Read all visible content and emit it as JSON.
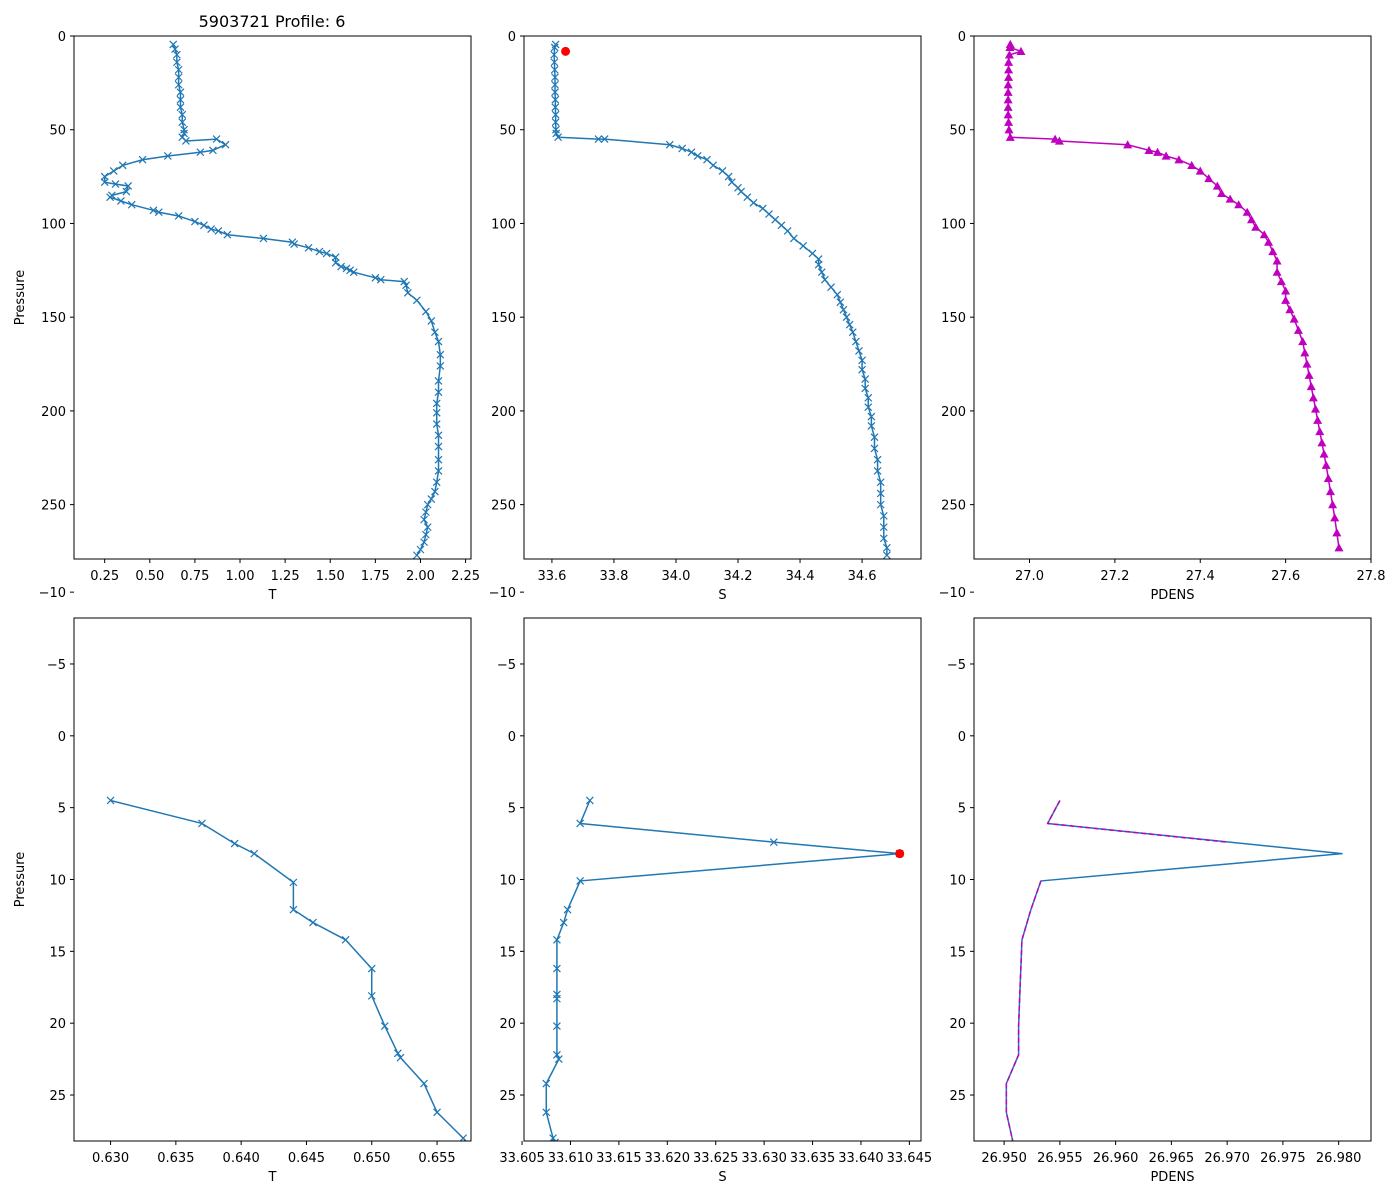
{
  "chart_data": [
    {
      "type": "line",
      "id": "tl",
      "title": "5903721 Profile: 6",
      "xlabel": "T",
      "ylabel": "Pressure",
      "xlim": [
        0.08,
        2.28
      ],
      "ylim": [
        279,
        0
      ],
      "xticks": [
        0.25,
        0.5,
        0.75,
        1.0,
        1.25,
        1.5,
        1.75,
        2.0,
        2.25
      ],
      "xtick_labels": [
        "0.25",
        "0.50",
        "0.75",
        "1.00",
        "1.25",
        "1.50",
        "1.75",
        "2.00",
        "2.25"
      ],
      "yticks": [
        0,
        50,
        100,
        150,
        200,
        250
      ],
      "ytick_labels": [
        "0",
        "50",
        "100",
        "150",
        "200",
        "250"
      ],
      "series": [
        {
          "name": "T",
          "color": "#1f77b4",
          "marker": "x",
          "line": "solid",
          "x": [
            0.63,
            0.64,
            0.65,
            0.65,
            0.66,
            0.66,
            0.66,
            0.67,
            0.67,
            0.67,
            0.68,
            0.68,
            0.69,
            0.69,
            0.68,
            0.7,
            0.87,
            0.92,
            0.85,
            0.78,
            0.6,
            0.46,
            0.35,
            0.3,
            0.25,
            0.25,
            0.31,
            0.38,
            0.37,
            0.29,
            0.28,
            0.34,
            0.4,
            0.52,
            0.55,
            0.66,
            0.75,
            0.8,
            0.84,
            0.88,
            0.93,
            1.13,
            1.29,
            1.3,
            1.38,
            1.44,
            1.48,
            1.53,
            1.53,
            1.56,
            1.59,
            1.61,
            1.63,
            1.75,
            1.78,
            1.91,
            1.92,
            1.93,
            1.98,
            2.03,
            2.06,
            2.08,
            2.1,
            2.11,
            2.11,
            2.1,
            2.1,
            2.09,
            2.09,
            2.09,
            2.1,
            2.1,
            2.1,
            2.1,
            2.09,
            2.08,
            2.06,
            2.04,
            2.03,
            2.02,
            2.04,
            2.03,
            2.02,
            2.0,
            1.98
          ],
          "y": [
            4.5,
            7,
            10,
            14,
            18,
            22,
            26,
            30,
            34,
            38,
            42,
            46,
            50,
            52,
            54,
            56,
            55,
            58,
            61,
            62,
            64,
            66,
            69,
            72,
            75,
            78,
            79,
            80,
            83,
            85,
            86,
            88,
            90,
            93,
            94,
            96,
            99,
            101,
            103,
            104,
            106,
            108,
            110,
            111,
            113,
            115,
            116,
            118,
            121,
            123,
            124,
            125,
            126,
            129,
            130,
            131,
            133,
            137,
            141,
            147,
            152,
            158,
            163,
            170,
            176,
            184,
            190,
            196,
            201,
            207,
            213,
            219,
            226,
            232,
            238,
            243,
            247,
            250,
            254,
            258,
            262,
            266,
            270,
            274,
            277
          ]
        }
      ]
    },
    {
      "type": "line",
      "id": "tm",
      "title": "",
      "xlabel": "S",
      "ylabel": "",
      "xlim": [
        33.51,
        34.79
      ],
      "ylim": [
        279,
        0
      ],
      "xticks": [
        33.6,
        33.8,
        34.0,
        34.2,
        34.4,
        34.6
      ],
      "xtick_labels": [
        "33.6",
        "33.8",
        "34.0",
        "34.2",
        "34.4",
        "34.6"
      ],
      "yticks": [
        0,
        50,
        100,
        150,
        200,
        250
      ],
      "ytick_labels": [
        "0",
        "50",
        "100",
        "150",
        "200",
        "250"
      ],
      "series": [
        {
          "name": "S",
          "color": "#1f77b4",
          "marker": "x",
          "line": "solid",
          "x": [
            33.612,
            33.609,
            33.607,
            33.608,
            33.609,
            33.61,
            33.61,
            33.61,
            33.611,
            33.611,
            33.612,
            33.612,
            33.613,
            33.614,
            33.62,
            33.75,
            33.77,
            33.98,
            34.02,
            34.05,
            34.07,
            34.1,
            34.12,
            34.15,
            34.17,
            34.18,
            34.2,
            34.21,
            34.23,
            34.25,
            34.28,
            34.3,
            34.32,
            34.34,
            34.36,
            34.38,
            34.41,
            34.44,
            34.46,
            34.46,
            34.47,
            34.48,
            34.5,
            34.52,
            34.53,
            34.54,
            34.55,
            34.56,
            34.57,
            34.58,
            34.59,
            34.6,
            34.6,
            34.61,
            34.61,
            34.62,
            34.62,
            34.63,
            34.63,
            34.64,
            34.64,
            34.65,
            34.65,
            34.66,
            34.66,
            34.66,
            34.67,
            34.67,
            34.67,
            34.68,
            34.68
          ],
          "y": [
            4.5,
            6.1,
            10,
            14,
            18,
            22,
            26,
            30,
            34,
            38,
            42,
            46,
            50,
            52,
            54,
            55,
            55,
            58,
            60,
            62,
            64,
            66,
            69,
            72,
            75,
            78,
            81,
            83,
            86,
            89,
            92,
            95,
            98,
            101,
            104,
            108,
            112,
            116,
            119,
            122,
            126,
            130,
            134,
            138,
            142,
            146,
            150,
            154,
            158,
            163,
            168,
            173,
            178,
            183,
            188,
            193,
            198,
            203,
            208,
            214,
            220,
            226,
            232,
            238,
            244,
            250,
            256,
            262,
            268,
            273,
            277
          ]
        },
        {
          "name": "flagged",
          "color": "#ff0000",
          "marker": "dot",
          "line": "none",
          "x": [
            33.644
          ],
          "y": [
            8.2
          ]
        }
      ]
    },
    {
      "type": "line",
      "id": "tr",
      "title": "",
      "xlabel": "PDENS",
      "ylabel": "",
      "xlim": [
        26.87,
        27.8
      ],
      "ylim": [
        279,
        0
      ],
      "xticks": [
        27.0,
        27.2,
        27.4,
        27.6,
        27.8
      ],
      "xtick_labels": [
        "27.0",
        "27.2",
        "27.4",
        "27.6",
        "27.8"
      ],
      "yticks": [
        0,
        50,
        100,
        150,
        200,
        250
      ],
      "ytick_labels": [
        "0",
        "50",
        "100",
        "150",
        "200",
        "250"
      ],
      "series": [
        {
          "name": "PDENS",
          "color": "#bf00bf",
          "marker": "triangle",
          "line": "solid",
          "x": [
            26.955,
            26.954,
            26.98,
            26.953,
            26.951,
            26.951,
            26.951,
            26.95,
            26.95,
            26.95,
            26.95,
            26.95,
            26.951,
            26.952,
            26.955,
            27.06,
            27.07,
            27.23,
            27.28,
            27.3,
            27.32,
            27.35,
            27.38,
            27.4,
            27.42,
            27.44,
            27.45,
            27.47,
            27.49,
            27.51,
            27.52,
            27.53,
            27.55,
            27.56,
            27.57,
            27.58,
            27.58,
            27.59,
            27.6,
            27.6,
            27.61,
            27.62,
            27.63,
            27.64,
            27.645,
            27.65,
            27.655,
            27.66,
            27.665,
            27.67,
            27.675,
            27.68,
            27.685,
            27.69,
            27.695,
            27.7,
            27.705,
            27.71,
            27.715,
            27.72,
            27.725
          ],
          "y": [
            4.5,
            6.1,
            8.2,
            10.1,
            14,
            18,
            22,
            26,
            30,
            34,
            38,
            42,
            46,
            50,
            54,
            55,
            56,
            58,
            61,
            62,
            64,
            66,
            69,
            72,
            76,
            80,
            84,
            87,
            90,
            94,
            98,
            102,
            106,
            110,
            115,
            120,
            126,
            131,
            136,
            141,
            146,
            151,
            157,
            163,
            169,
            175,
            181,
            187,
            193,
            199,
            205,
            211,
            217,
            223,
            229,
            236,
            243,
            250,
            257,
            265,
            273
          ]
        }
      ]
    },
    {
      "type": "line",
      "id": "bl",
      "title": "",
      "xlabel": "T",
      "ylabel": "Pressure",
      "xlim": [
        0.6272,
        0.6576
      ],
      "ylim": [
        28.2,
        -8.2
      ],
      "xticks": [
        0.63,
        0.635,
        0.64,
        0.645,
        0.65,
        0.655
      ],
      "xtick_labels": [
        "0.630",
        "0.635",
        "0.640",
        "0.645",
        "0.650",
        "0.655"
      ],
      "yticks": [
        -10,
        -5,
        0,
        5,
        10,
        15,
        20,
        25
      ],
      "ytick_labels": [
        "−10",
        "−5",
        "0",
        "5",
        "10",
        "15",
        "20",
        "25"
      ],
      "series": [
        {
          "name": "T",
          "color": "#1f77b4",
          "marker": "x",
          "line": "solid",
          "x": [
            0.63,
            0.637,
            0.6395,
            0.641,
            0.644,
            0.644,
            0.6455,
            0.648,
            0.65,
            0.65,
            0.651,
            0.652,
            0.6522,
            0.654,
            0.655,
            0.657,
            0.6575
          ],
          "y": [
            4.5,
            6.1,
            7.5,
            8.2,
            10.2,
            12.1,
            13.0,
            14.2,
            16.2,
            18.1,
            20.2,
            22.1,
            22.4,
            24.2,
            26.2,
            28.0,
            28.5
          ]
        }
      ]
    },
    {
      "type": "line",
      "id": "bm",
      "title": "",
      "xlabel": "S",
      "ylabel": "",
      "xlim": [
        33.6052,
        33.6462
      ],
      "ylim": [
        28.2,
        -8.2
      ],
      "xticks": [
        33.605,
        33.61,
        33.615,
        33.62,
        33.625,
        33.63,
        33.635,
        33.64,
        33.645
      ],
      "xtick_labels": [
        "33.605",
        "33.610",
        "33.615",
        "33.620",
        "33.625",
        "33.630",
        "33.635",
        "33.640",
        "33.645"
      ],
      "yticks": [
        -10,
        -5,
        0,
        5,
        10,
        15,
        20,
        25
      ],
      "ytick_labels": [
        "−10",
        "−5",
        "0",
        "5",
        "10",
        "15",
        "20",
        "25"
      ],
      "series": [
        {
          "name": "S",
          "color": "#1f77b4",
          "marker": "x",
          "line": "solid",
          "x": [
            33.612,
            33.611,
            33.631,
            33.644,
            33.611,
            33.6097,
            33.6093,
            33.6086,
            33.6086,
            33.6086,
            33.6086,
            33.6086,
            33.6086,
            33.6088,
            33.6075,
            33.6075,
            33.6082,
            33.6084
          ],
          "y": [
            4.5,
            6.1,
            7.4,
            8.2,
            10.1,
            12.1,
            13.0,
            14.2,
            16.2,
            18.0,
            18.3,
            20.2,
            22.2,
            22.5,
            24.2,
            26.2,
            28.0,
            28.3
          ]
        },
        {
          "name": "flagged",
          "color": "#ff0000",
          "marker": "dot",
          "line": "none",
          "x": [
            33.644
          ],
          "y": [
            8.2
          ]
        }
      ]
    },
    {
      "type": "line",
      "id": "br",
      "title": "",
      "xlabel": "PDENS",
      "ylabel": "",
      "xlim": [
        26.9473,
        26.9829
      ],
      "ylim": [
        28.2,
        -8.2
      ],
      "xticks": [
        26.95,
        26.955,
        26.96,
        26.965,
        26.97,
        26.975,
        26.98
      ],
      "xtick_labels": [
        "26.950",
        "26.955",
        "26.960",
        "26.965",
        "26.970",
        "26.975",
        "26.980"
      ],
      "yticks": [
        -10,
        -5,
        0,
        5,
        10,
        15,
        20,
        25
      ],
      "ytick_labels": [
        "−10",
        "−5",
        "0",
        "5",
        "10",
        "15",
        "20",
        "25"
      ],
      "series": [
        {
          "name": "PDENS",
          "color": "#1f77b4",
          "marker": "none",
          "line": "solid",
          "x": [
            26.955,
            26.9539,
            26.9803,
            26.9533,
            26.9524,
            26.9516,
            26.9515,
            26.9514,
            26.9513,
            26.9513,
            26.9502,
            26.9502,
            26.9508
          ],
          "y": [
            4.5,
            6.1,
            8.2,
            10.1,
            12.1,
            14.2,
            16.2,
            18.1,
            20.2,
            22.2,
            24.2,
            26.2,
            28.3
          ]
        },
        {
          "name": "PDENS-flagged",
          "color": "#bf00bf",
          "marker": "none",
          "line": "dashed",
          "x": [
            26.955,
            26.9539,
            26.97
          ],
          "y": [
            4.5,
            6.1,
            7.4
          ]
        },
        {
          "name": "PDENS-smooth",
          "color": "#bf00bf",
          "marker": "none",
          "line": "dashed",
          "x": [
            26.9533,
            26.9524,
            26.9516,
            26.9515,
            26.9514,
            26.9513,
            26.9513,
            26.9502,
            26.9502,
            26.9508
          ],
          "y": [
            10.1,
            12.1,
            14.2,
            16.2,
            18.1,
            20.2,
            22.2,
            24.2,
            26.2,
            28.3
          ]
        }
      ]
    }
  ]
}
